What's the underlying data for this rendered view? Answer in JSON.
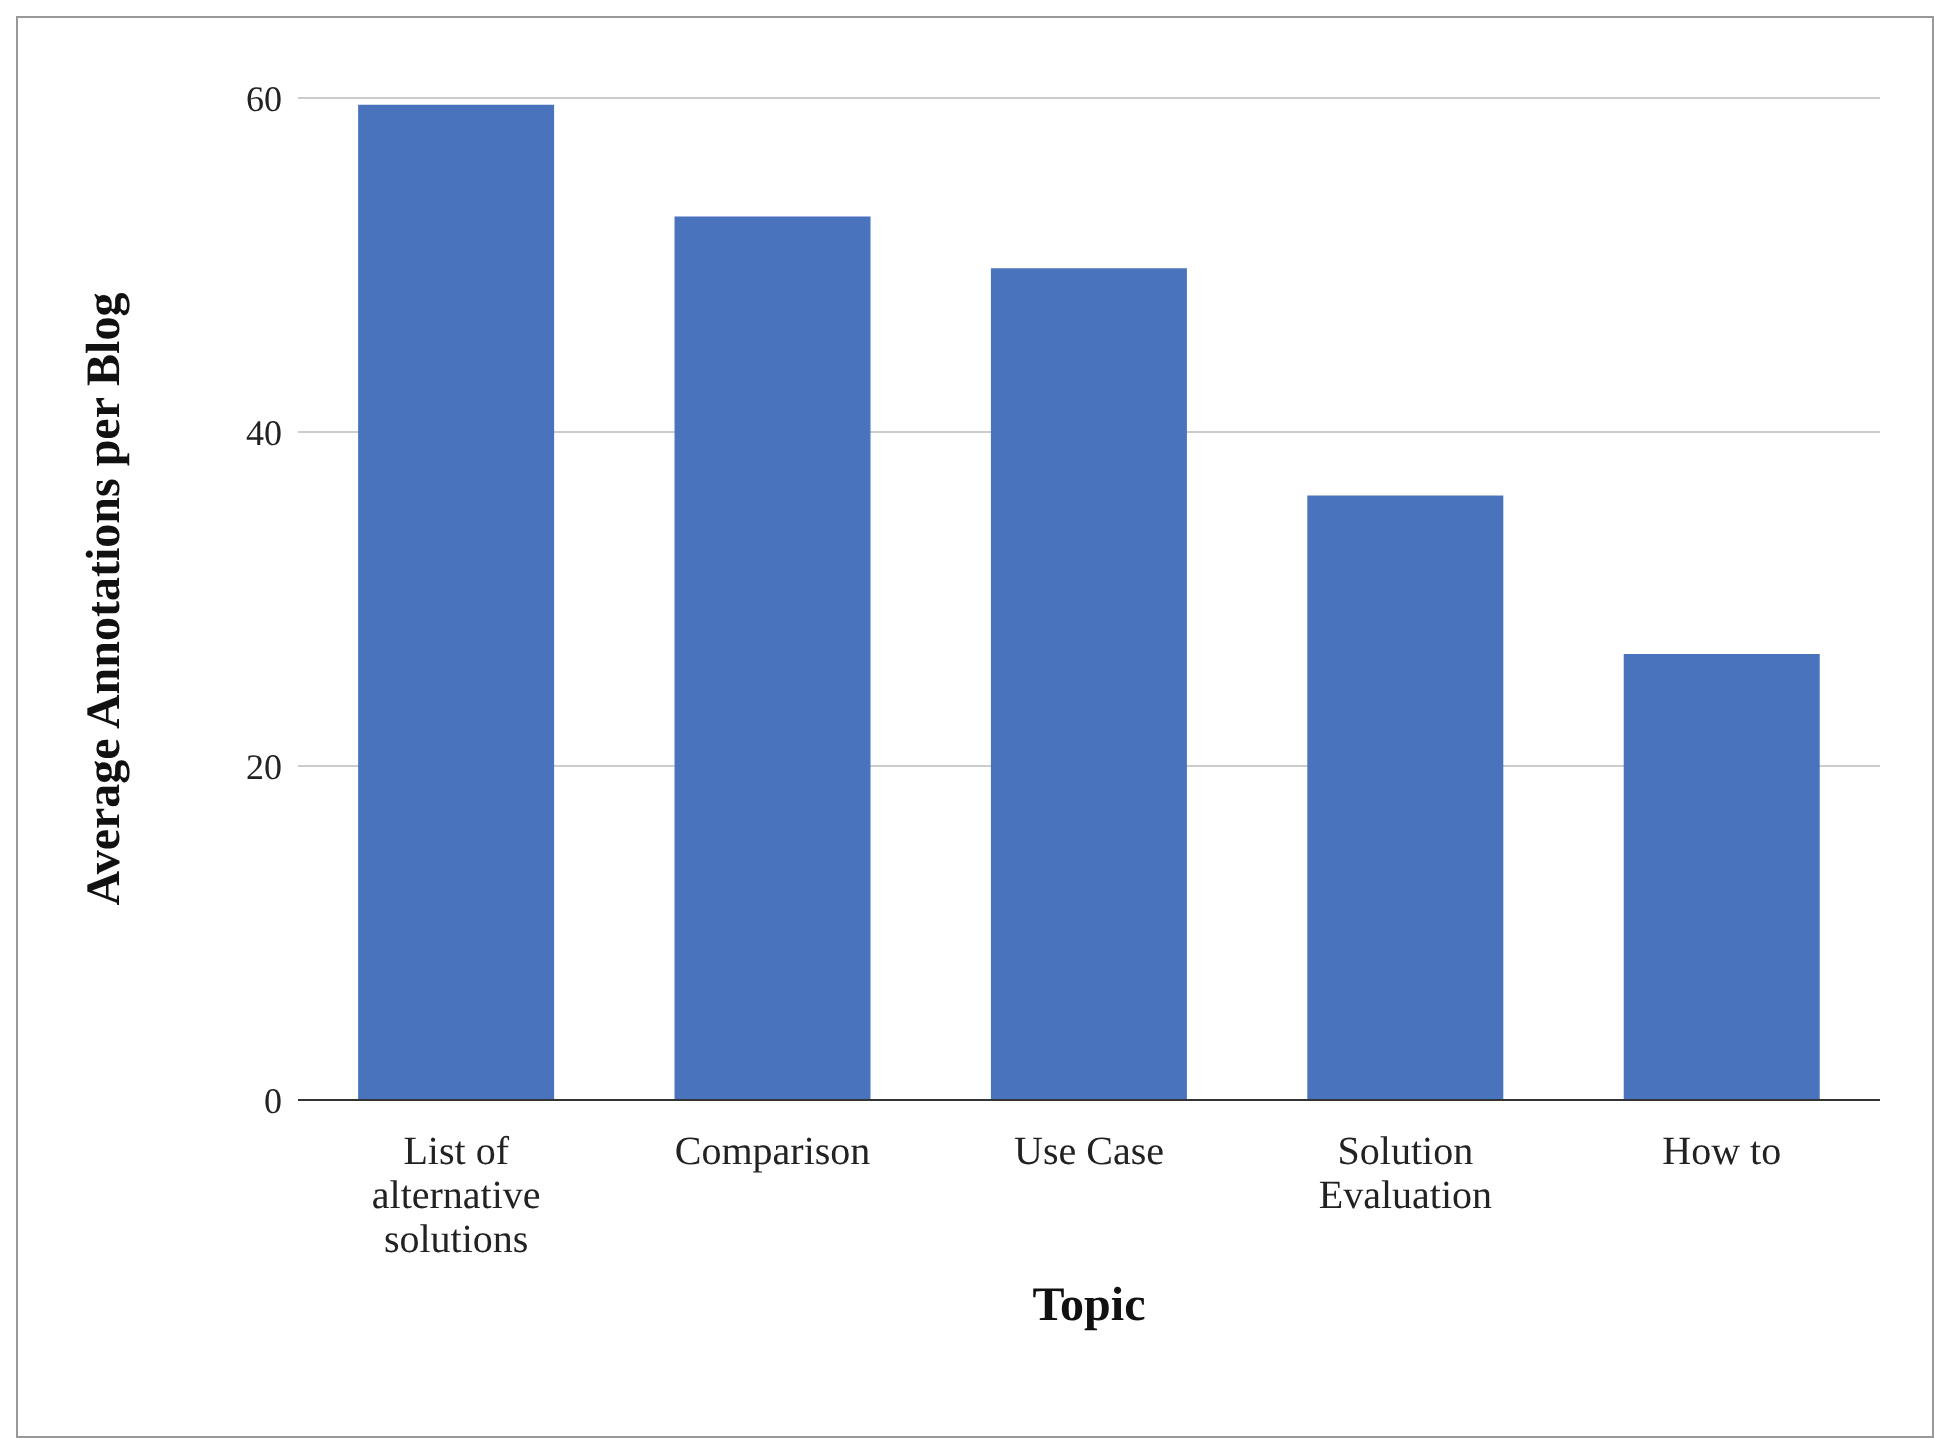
{
  "chart_data": {
    "type": "bar",
    "xlabel": "Topic",
    "ylabel": "Average Annotations per Blog",
    "categories": [
      "List of alternative solutions",
      "Comparison",
      "Use Case",
      "Solution Evaluation",
      "How to"
    ],
    "values": [
      59.6,
      52.9,
      49.8,
      36.2,
      26.7
    ],
    "color": "#4a73bd",
    "ylim": [
      0,
      60
    ],
    "yticks": [
      0,
      20,
      40,
      60
    ],
    "grid": "y"
  }
}
